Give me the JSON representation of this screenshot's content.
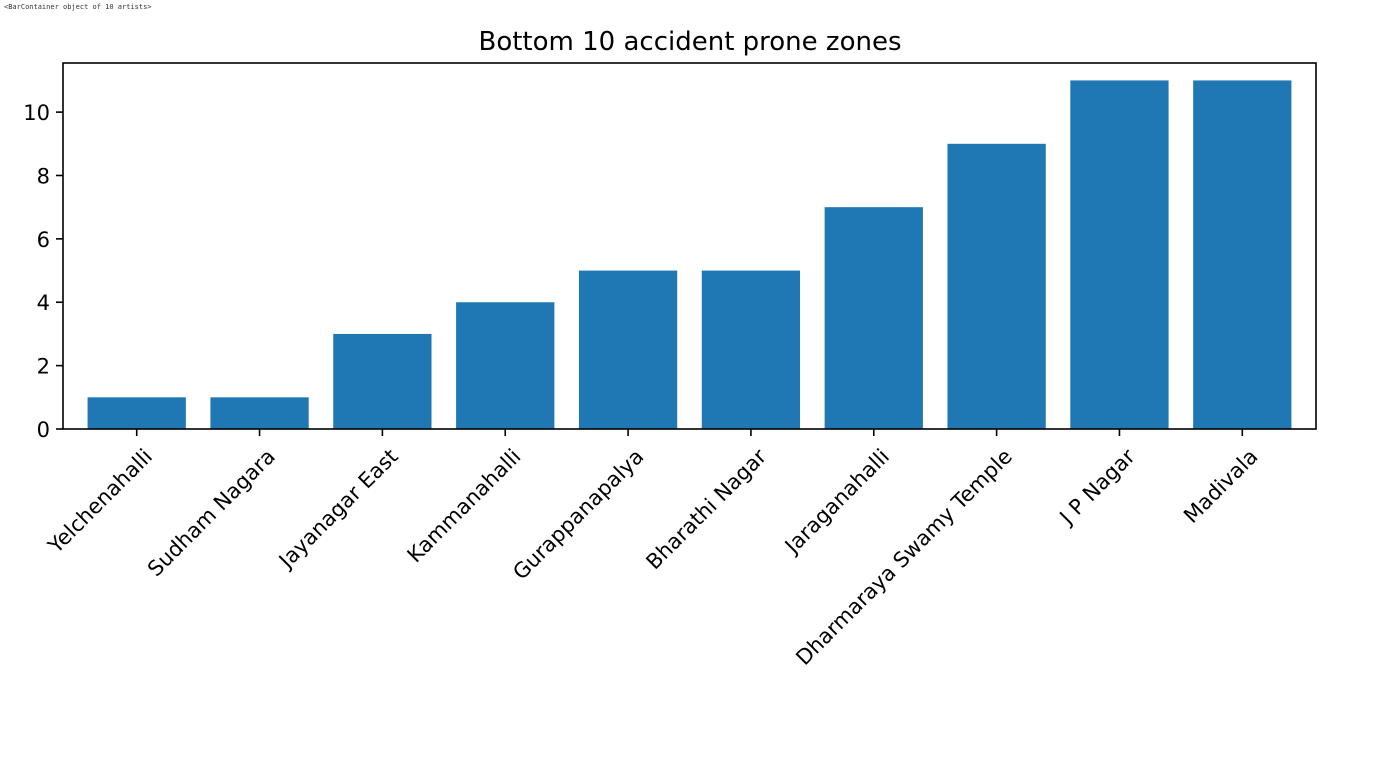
{
  "output_text": "<BarContainer object of 10 artists>",
  "colors": {
    "bar": "#1f77b4",
    "axis": "#000000",
    "background": "#ffffff"
  },
  "chart_data": {
    "type": "bar",
    "title": "Bottom 10 accident prone zones",
    "xlabel": "",
    "ylabel": "",
    "categories": [
      "Yelchenahalli",
      "Sudham Nagara",
      "Jayanagar East",
      "Kammanahalli",
      "Gurappanapalya",
      "Bharathi Nagar",
      "Jaraganahalli",
      "Dharmaraya Swamy Temple",
      "J P Nagar",
      "Madivala"
    ],
    "values": [
      1,
      1,
      3,
      4,
      5,
      5,
      7,
      9,
      11,
      11
    ],
    "ylim": [
      0,
      11.55
    ],
    "yticks": [
      0,
      2,
      4,
      6,
      8,
      10
    ],
    "ytick_labels": [
      "0",
      "2",
      "4",
      "6",
      "8",
      "10"
    ],
    "xtick_rotation": -45,
    "grid": false,
    "legend": "none"
  }
}
